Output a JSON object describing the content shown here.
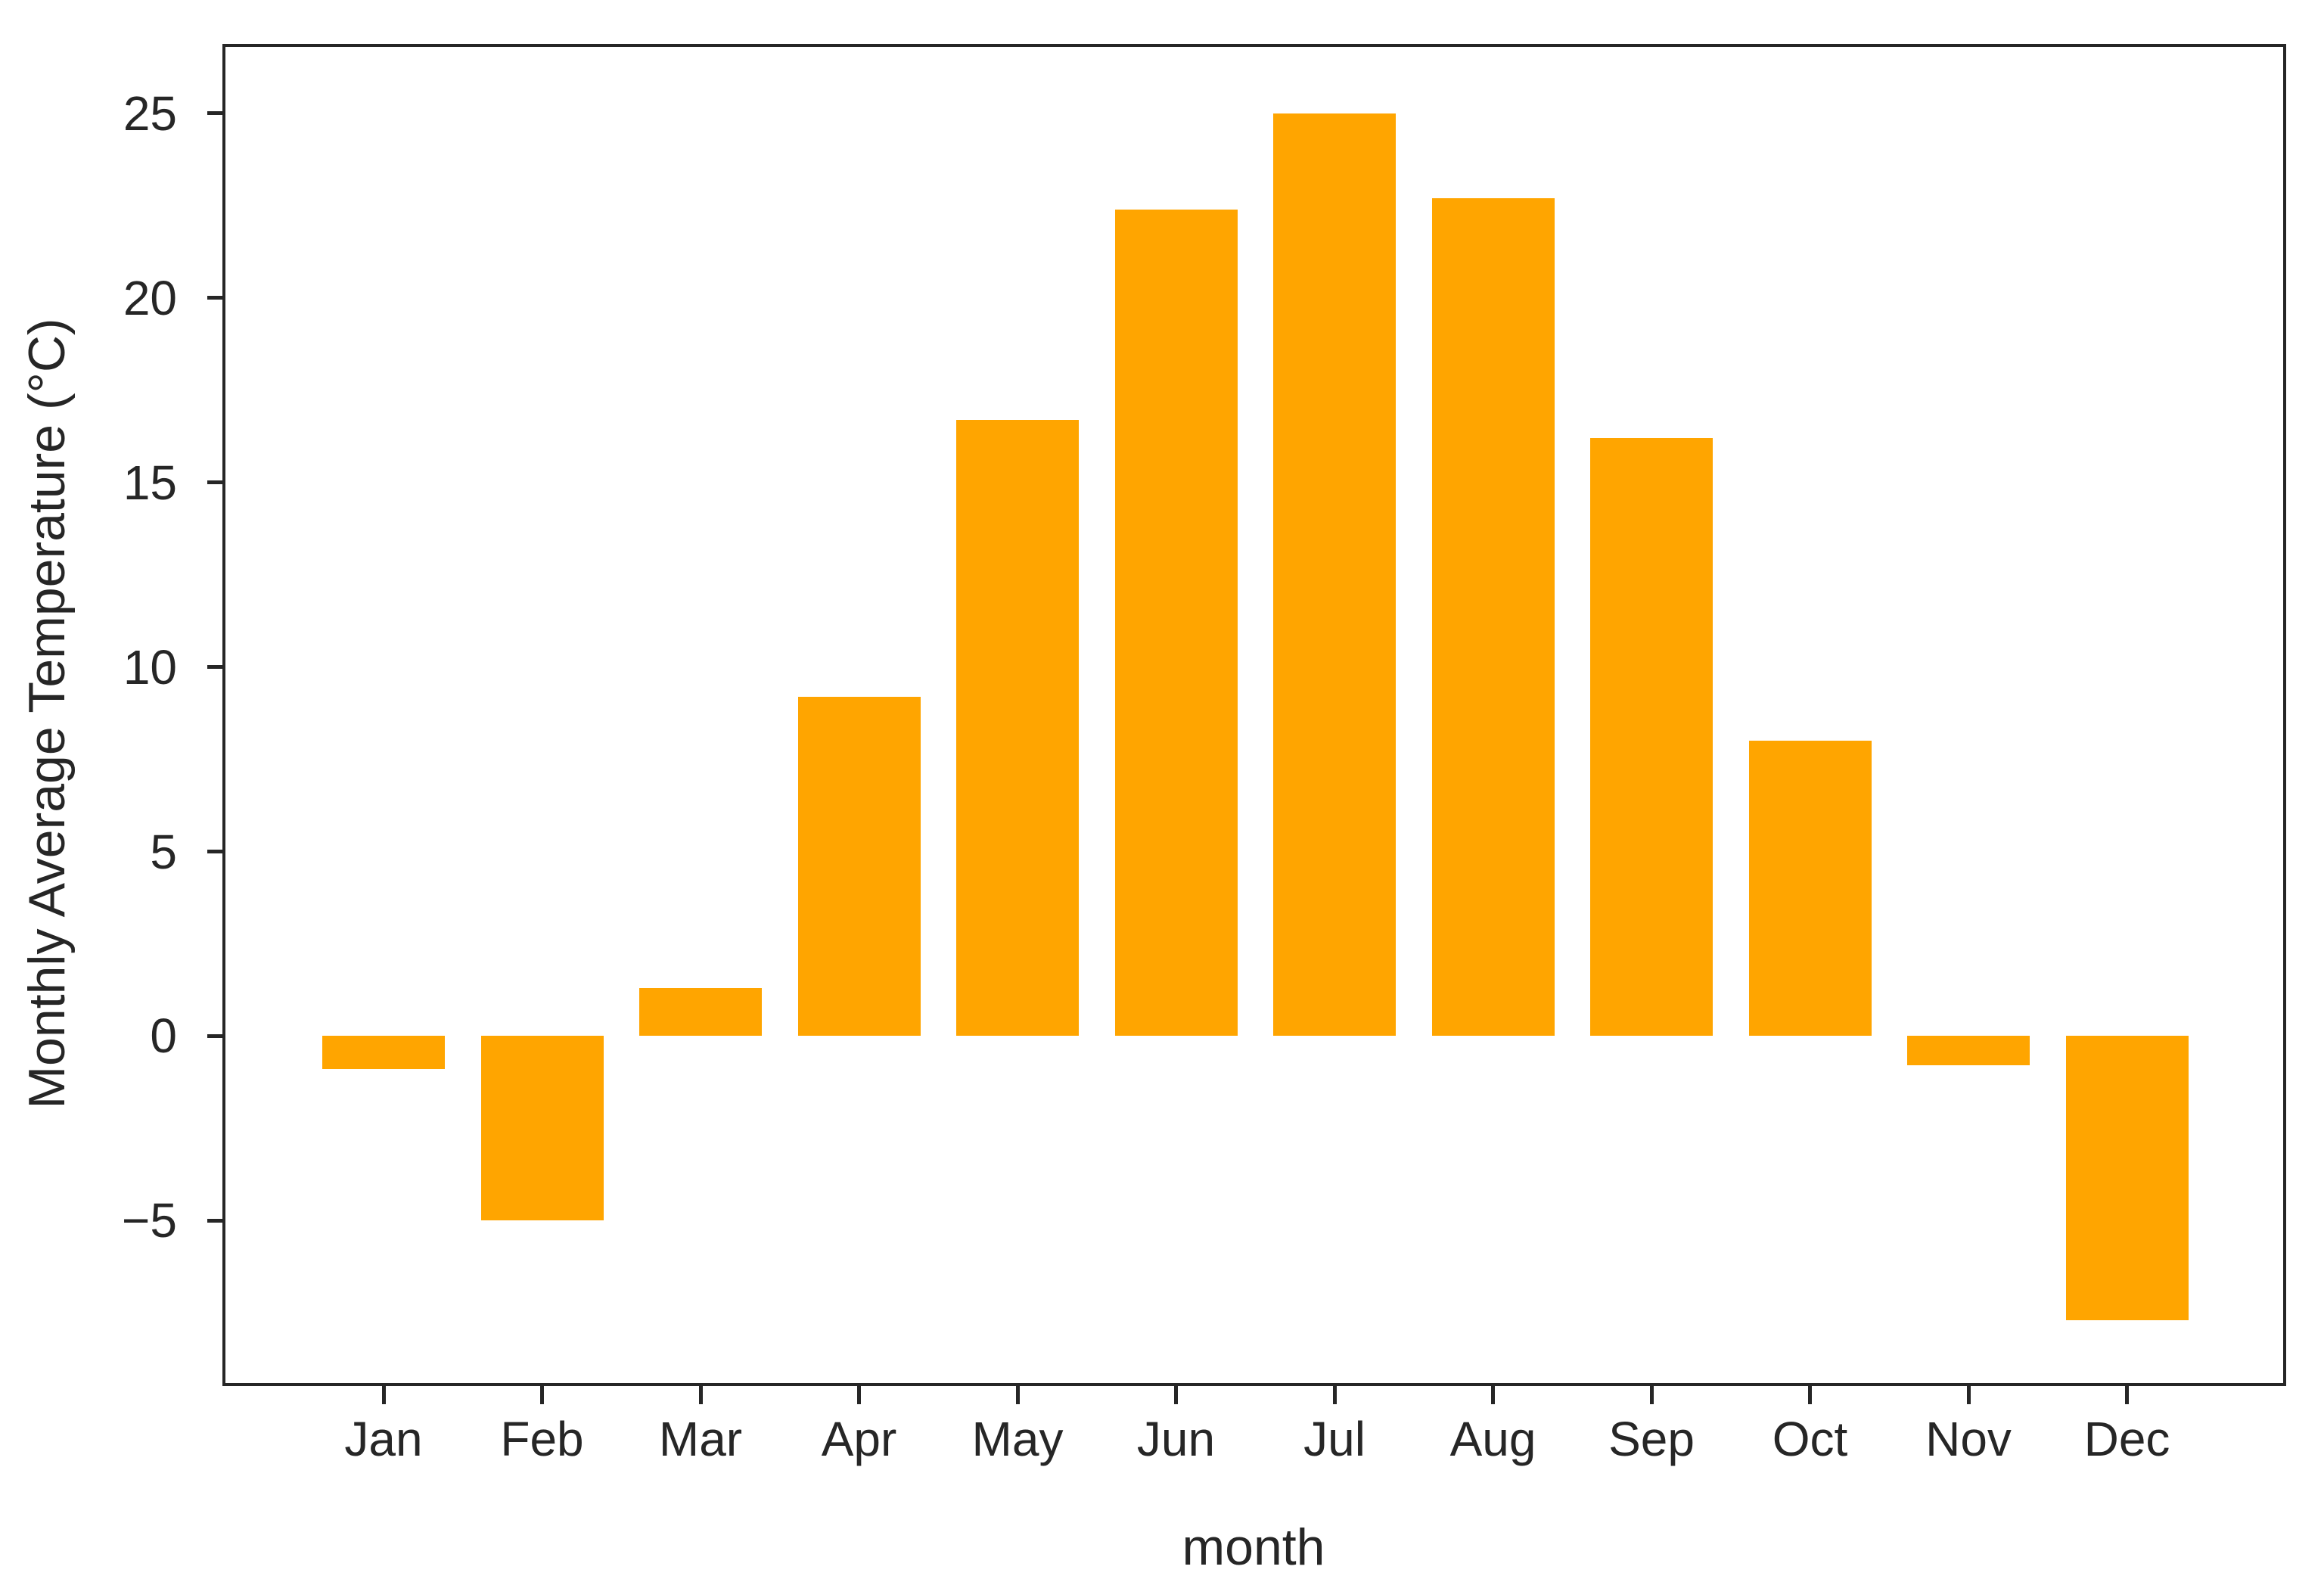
{
  "figure": {
    "background_color": "#ffffff",
    "axis_color": "#262626",
    "text_color": "#262626"
  },
  "chart_data": {
    "type": "bar",
    "title": "",
    "xlabel": "month",
    "ylabel": "Monthly Average Temperature (°C)",
    "categories": [
      "Jan",
      "Feb",
      "Mar",
      "Apr",
      "May",
      "Jun",
      "Jul",
      "Aug",
      "Sep",
      "Oct",
      "Nov",
      "Dec"
    ],
    "values": [
      -0.9,
      -5.0,
      1.3,
      9.2,
      16.7,
      22.4,
      25.0,
      22.7,
      16.2,
      8.0,
      -0.8,
      -7.7
    ],
    "bar_color": "#ffa500",
    "ylim": [
      -9.4,
      26.8
    ],
    "yticks": [
      25,
      20,
      15,
      10,
      5,
      0,
      -5
    ],
    "ytick_labels": [
      "25",
      "20",
      "15",
      "10",
      "5",
      "0",
      "−5"
    ],
    "grid": false,
    "legend": null,
    "spines": "full-box"
  }
}
